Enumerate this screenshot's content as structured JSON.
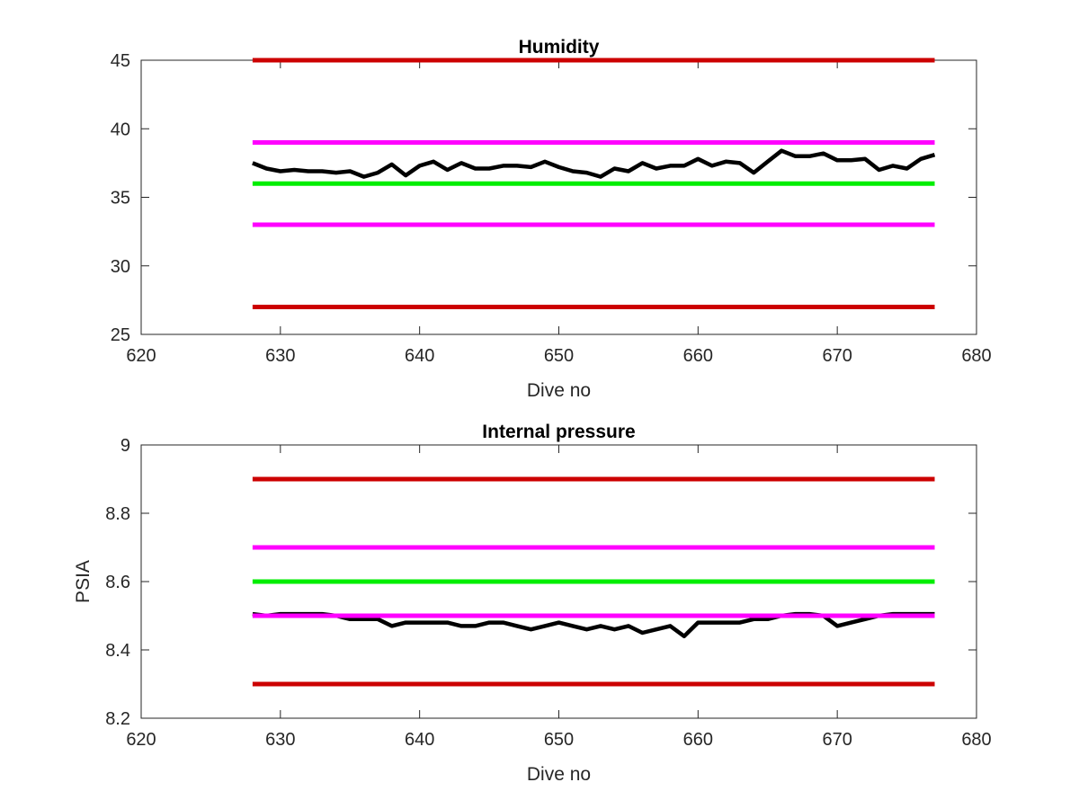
{
  "chart_data": [
    {
      "type": "line",
      "title": "Humidity",
      "xlabel": "Dive no",
      "ylabel": "",
      "xlim": [
        620,
        680
      ],
      "ylim": [
        25,
        45
      ],
      "xticks": [
        "620",
        "630",
        "640",
        "650",
        "660",
        "670",
        "680"
      ],
      "yticks": [
        "25",
        "30",
        "35",
        "40",
        "45"
      ],
      "grid": false,
      "series": [
        {
          "color": "#cc0000",
          "x": [
            628,
            677
          ],
          "y": [
            45,
            45
          ]
        },
        {
          "color": "#ff00ff",
          "x": [
            628,
            677
          ],
          "y": [
            39,
            39
          ]
        },
        {
          "color": "#00ee00",
          "x": [
            628,
            677
          ],
          "y": [
            36,
            36
          ]
        },
        {
          "color": "#ff00ff",
          "x": [
            628,
            677
          ],
          "y": [
            33,
            33
          ]
        },
        {
          "color": "#cc0000",
          "x": [
            628,
            677
          ],
          "y": [
            27,
            27
          ]
        },
        {
          "color": "#000000",
          "x": [
            628,
            629,
            630,
            631,
            632,
            633,
            634,
            635,
            636,
            637,
            638,
            639,
            640,
            641,
            642,
            643,
            644,
            645,
            646,
            647,
            648,
            649,
            650,
            651,
            652,
            653,
            654,
            655,
            656,
            657,
            658,
            659,
            660,
            661,
            662,
            663,
            664,
            665,
            666,
            667,
            668,
            669,
            670,
            671,
            672,
            673,
            674,
            675,
            676,
            677
          ],
          "y": [
            37.5,
            37.1,
            36.9,
            37.0,
            36.9,
            36.9,
            36.8,
            36.9,
            36.5,
            36.8,
            37.4,
            36.6,
            37.3,
            37.6,
            37.0,
            37.5,
            37.1,
            37.1,
            37.3,
            37.3,
            37.2,
            37.6,
            37.2,
            36.9,
            36.8,
            36.5,
            37.1,
            36.9,
            37.5,
            37.1,
            37.3,
            37.3,
            37.8,
            37.3,
            37.6,
            37.5,
            36.8,
            37.6,
            38.4,
            38.0,
            38.0,
            38.2,
            37.7,
            37.7,
            37.8,
            37.0,
            37.3,
            37.1,
            37.8,
            38.1
          ]
        }
      ]
    },
    {
      "type": "line",
      "title": "Internal pressure",
      "xlabel": "Dive no",
      "ylabel": "PSIA",
      "xlim": [
        620,
        680
      ],
      "ylim": [
        8.2,
        9
      ],
      "xticks": [
        "620",
        "630",
        "640",
        "650",
        "660",
        "670",
        "680"
      ],
      "yticks": [
        "8.2",
        "8.4",
        "8.6",
        "8.8",
        "9"
      ],
      "grid": false,
      "series": [
        {
          "color": "#cc0000",
          "x": [
            628,
            677
          ],
          "y": [
            8.9,
            8.9
          ]
        },
        {
          "color": "#ff00ff",
          "x": [
            628,
            677
          ],
          "y": [
            8.7,
            8.7
          ]
        },
        {
          "color": "#00ee00",
          "x": [
            628,
            677
          ],
          "y": [
            8.6,
            8.6
          ]
        },
        {
          "color": "#000000",
          "x": [
            628,
            629,
            630,
            631,
            632,
            633,
            634,
            635,
            636,
            637,
            638,
            639,
            640,
            641,
            642,
            643,
            644,
            645,
            646,
            647,
            648,
            649,
            650,
            651,
            652,
            653,
            654,
            655,
            656,
            657,
            658,
            659,
            660,
            661,
            662,
            663,
            664,
            665,
            666,
            667,
            668,
            669,
            670,
            671,
            672,
            673,
            674,
            675,
            676,
            677
          ],
          "y": [
            8.505,
            8.5,
            8.505,
            8.505,
            8.505,
            8.505,
            8.5,
            8.49,
            8.49,
            8.49,
            8.47,
            8.48,
            8.48,
            8.48,
            8.48,
            8.47,
            8.47,
            8.48,
            8.48,
            8.47,
            8.46,
            8.47,
            8.48,
            8.47,
            8.46,
            8.47,
            8.46,
            8.47,
            8.45,
            8.46,
            8.47,
            8.44,
            8.48,
            8.48,
            8.48,
            8.48,
            8.49,
            8.49,
            8.5,
            8.505,
            8.505,
            8.5,
            8.47,
            8.48,
            8.49,
            8.5,
            8.505,
            8.505,
            8.505,
            8.505
          ]
        },
        {
          "color": "#ff00ff",
          "x": [
            628,
            677
          ],
          "y": [
            8.5,
            8.5
          ]
        },
        {
          "color": "#cc0000",
          "x": [
            628,
            677
          ],
          "y": [
            8.3,
            8.3
          ]
        }
      ]
    }
  ]
}
